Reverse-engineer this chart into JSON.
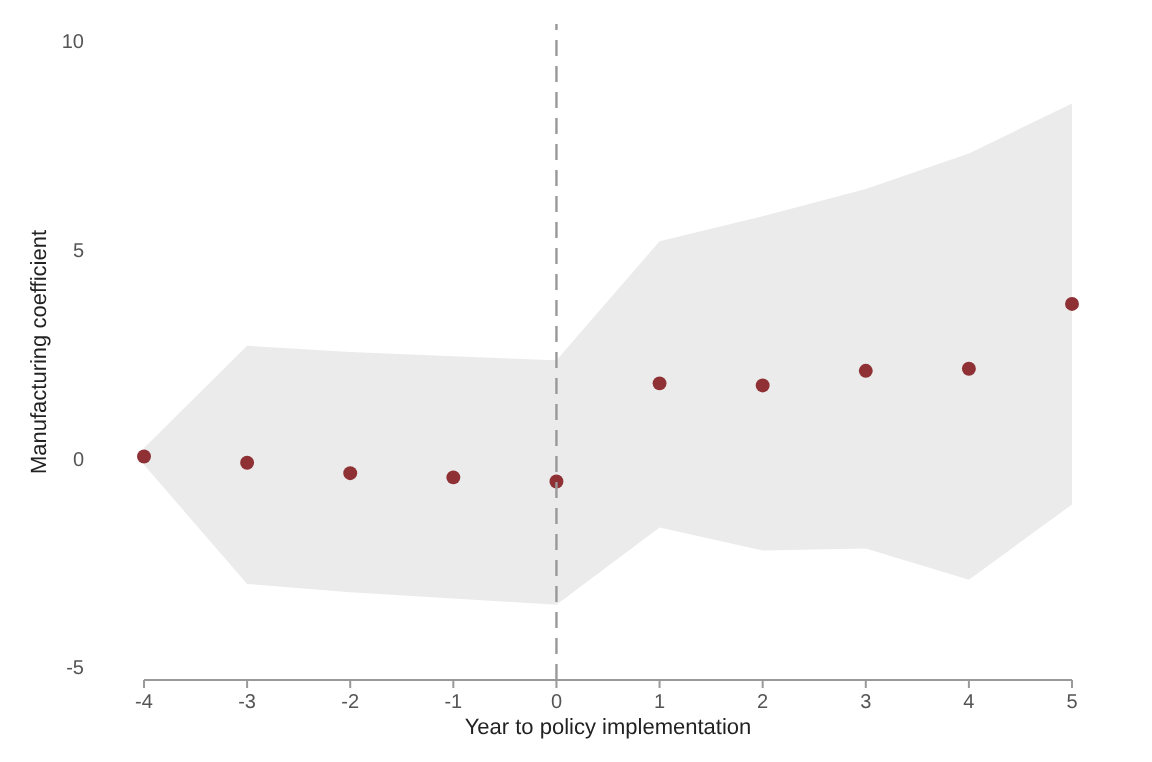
{
  "chart_data": {
    "type": "scatter",
    "xlabel": "Year to policy implementation",
    "ylabel": "Manufacturing coefficient",
    "x": [
      -4,
      -3,
      -2,
      -1,
      0,
      1,
      2,
      3,
      4,
      5
    ],
    "series": [
      {
        "color": "#8e3034",
        "values": [
          0.05,
          -0.1,
          -0.35,
          -0.45,
          -0.55,
          1.8,
          1.75,
          2.1,
          2.15,
          3.7
        ],
        "lower": [
          -0.15,
          -3.0,
          -3.2,
          -3.35,
          -3.5,
          -1.65,
          -2.2,
          -2.15,
          -2.9,
          -1.1
        ],
        "upper": [
          0.25,
          2.7,
          2.55,
          2.45,
          2.35,
          5.2,
          5.8,
          6.45,
          7.3,
          8.5
        ]
      }
    ],
    "xlim": [
      -4,
      5
    ],
    "xticks": [
      -4,
      -3,
      -2,
      -1,
      0,
      1,
      2,
      3,
      4,
      5
    ],
    "ylim": [
      -5.3,
      10.4
    ],
    "yticks": [
      -5,
      0,
      5,
      10
    ],
    "ref_lines": [
      {
        "axis": "x",
        "value": 0,
        "color": "#999999",
        "line_style": "dashed"
      }
    ],
    "marker": "circle"
  }
}
